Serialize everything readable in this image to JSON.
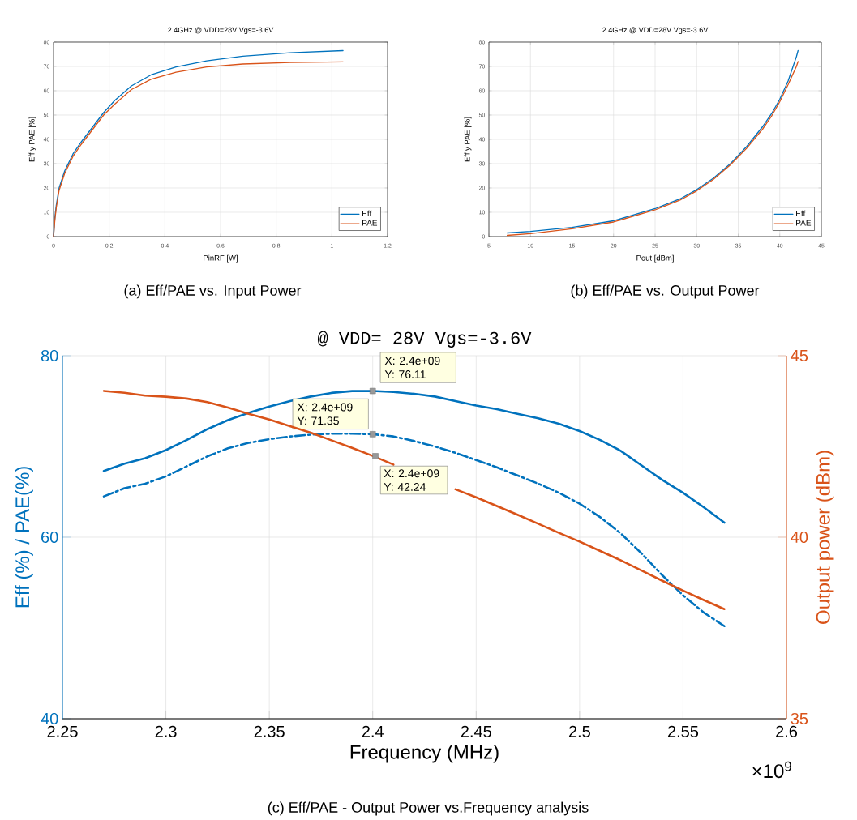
{
  "chart_data": [
    {
      "type": "line",
      "title": "2.4GHz @ VDD=28V Vgs=-3.6V",
      "xlabel": "PinRF [W]",
      "ylabel": "Eff y PAE [%]",
      "x": [
        0,
        0.005,
        0.01,
        0.02,
        0.04,
        0.07,
        0.1,
        0.14,
        0.18,
        0.22,
        0.28,
        0.35,
        0.44,
        0.55,
        0.68,
        0.85,
        1.04
      ],
      "series": [
        {
          "name": "Eff",
          "color": "#0072bd",
          "values": [
            0,
            8,
            13,
            20,
            27,
            34,
            39,
            45,
            51,
            56,
            62,
            66.5,
            69.8,
            72.3,
            74.2,
            75.6,
            76.5
          ]
        },
        {
          "name": "PAE",
          "color": "#d95319",
          "values": [
            0,
            7,
            12,
            19,
            26,
            33,
            38,
            44,
            50,
            54.5,
            60.5,
            64.7,
            67.6,
            69.8,
            71,
            71.6,
            71.9
          ]
        }
      ],
      "xlim": [
        0,
        1.2
      ],
      "xticks": [
        0,
        0.2,
        0.4,
        0.6,
        0.8,
        1,
        1.2
      ],
      "ylim": [
        0,
        80
      ],
      "yticks": [
        0,
        10,
        20,
        30,
        40,
        50,
        60,
        70,
        80
      ],
      "grid": true,
      "legend": "bottom right",
      "annotations": [
        "(a)  Eff/PAE vs. Input Power"
      ]
    },
    {
      "type": "line",
      "title": "2.4GHz @ VDD=28V Vgs=-3.6V",
      "xlabel": "Pout [dBm]",
      "ylabel": "Eff y PAE [%]",
      "x": [
        7.2,
        10,
        15,
        20,
        25,
        28,
        30,
        32,
        34,
        36,
        38,
        39,
        40,
        41,
        42,
        42.2
      ],
      "series": [
        {
          "name": "Eff",
          "color": "#0072bd",
          "values": [
            1.5,
            2.1,
            3.8,
            6.5,
            11.5,
            15.5,
            19.3,
            24,
            29.8,
            37,
            45.5,
            50.5,
            56.5,
            64,
            74,
            76.5
          ]
        },
        {
          "name": "PAE",
          "color": "#d95319",
          "values": [
            0.5,
            1.2,
            3.2,
            6,
            11,
            15,
            18.8,
            23.5,
            29.3,
            36.3,
            44.5,
            49.5,
            55.5,
            62.5,
            70,
            72
          ]
        }
      ],
      "xlim": [
        5,
        45
      ],
      "xticks": [
        5,
        10,
        15,
        20,
        25,
        30,
        35,
        40,
        45
      ],
      "ylim": [
        0,
        80
      ],
      "yticks": [
        0,
        10,
        20,
        30,
        40,
        50,
        60,
        70,
        80
      ],
      "grid": true,
      "legend": "bottom right",
      "annotations": [
        "(b)  Eff/PAE vs. Output Power"
      ]
    },
    {
      "type": "line",
      "title": "@ VDD= 28V Vgs=-3.6V",
      "xlabel": "Frequency (MHz)",
      "ylabel": "Eff (%) / PAE(%)",
      "y2label": "Output power (dBm)",
      "x": [
        2.27,
        2.28,
        2.29,
        2.3,
        2.31,
        2.32,
        2.33,
        2.34,
        2.35,
        2.36,
        2.37,
        2.38,
        2.39,
        2.4,
        2.41,
        2.42,
        2.43,
        2.44,
        2.45,
        2.46,
        2.47,
        2.48,
        2.49,
        2.5,
        2.51,
        2.52,
        2.53,
        2.54,
        2.55,
        2.56,
        2.57
      ],
      "series": [
        {
          "color": "#0072bd",
          "values": [
            67.3,
            68.1,
            68.7,
            69.6,
            70.7,
            71.9,
            72.9,
            73.7,
            74.4,
            75.0,
            75.5,
            75.9,
            76.1,
            76.11,
            76.0,
            75.8,
            75.5,
            75.0,
            74.5,
            74.1,
            73.6,
            73.1,
            72.5,
            71.7,
            70.7,
            69.5,
            67.9,
            66.3,
            64.9,
            63.3,
            61.6
          ]
        },
        {
          "color": "#0072bd",
          "line_style": "dashed",
          "values": [
            64.5,
            65.4,
            65.9,
            66.7,
            67.8,
            68.9,
            69.8,
            70.4,
            70.8,
            71.1,
            71.3,
            71.4,
            71.4,
            71.35,
            71.1,
            70.6,
            70.0,
            69.3,
            68.5,
            67.7,
            66.8,
            65.9,
            64.9,
            63.7,
            62.2,
            60.4,
            58.2,
            55.8,
            53.6,
            51.7,
            50.2
          ]
        },
        {
          "color": "#d95319",
          "axis": "y2",
          "values": [
            44.03,
            43.98,
            43.9,
            43.87,
            43.82,
            43.72,
            43.57,
            43.4,
            43.24,
            43.06,
            42.88,
            42.67,
            42.46,
            42.24,
            42.0,
            null,
            null,
            41.32,
            41.1,
            40.86,
            40.62,
            40.37,
            40.12,
            39.88,
            39.62,
            39.36,
            39.08,
            38.8,
            38.53,
            38.27,
            38.02
          ]
        }
      ],
      "xlim": [
        2.25,
        2.6
      ],
      "xticks": [
        2.25,
        2.3,
        2.35,
        2.4,
        2.45,
        2.5,
        2.55,
        2.6
      ],
      "ylim": [
        40,
        80
      ],
      "yticks": [
        40,
        60,
        80
      ],
      "y2lim": [
        35,
        45
      ],
      "y2ticks": [
        35,
        40,
        45
      ],
      "grid": true,
      "annotations": [
        "(c) Eff/PAE - Output Power vs.Frequency analysis",
        "×10$^{9}$",
        {
          "text": "X: 2.4e+09 Y: 76.11",
          "x": 2.4,
          "y": 76.11
        },
        {
          "text": "X: 2.4e+09 Y: 71.35",
          "x": 2.4,
          "y": 71.35
        },
        "X: 2.4e+09 Y: 42.24"
      ]
    }
  ]
}
